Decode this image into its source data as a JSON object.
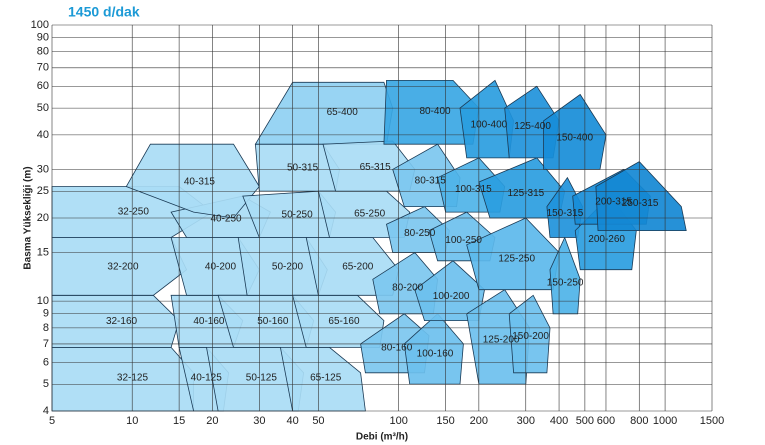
{
  "chart_data": {
    "type": "region",
    "title": "1450 d/dak",
    "x_label": "Debi (m³/h)",
    "y_label": "Basma Yüksekliği (m)",
    "xscale": "log",
    "yscale": "log",
    "grid": true,
    "xlim": [
      5,
      1500
    ],
    "ylim": [
      4,
      100
    ],
    "xticks": [
      5,
      10,
      15,
      20,
      30,
      40,
      50,
      100,
      150,
      200,
      300,
      400,
      500,
      600,
      800,
      1000,
      1500
    ],
    "yticks": [
      4,
      5,
      6,
      7,
      8,
      9,
      10,
      15,
      20,
      25,
      30,
      40,
      50,
      60,
      70,
      80,
      90,
      100
    ],
    "regions": [
      {
        "name": "32-125",
        "color": "#a9dcf5",
        "x": [
          5,
          17,
          17,
          14,
          5
        ],
        "y": [
          4,
          4,
          5.5,
          6.8,
          6.8
        ]
      },
      {
        "name": "32-160",
        "color": "#a9dcf5",
        "x": [
          5,
          14,
          15,
          12,
          5
        ],
        "y": [
          6.8,
          6.8,
          8.5,
          10.5,
          10.5
        ]
      },
      {
        "name": "32-200",
        "color": "#a9dcf5",
        "x": [
          5,
          12,
          16,
          14,
          5
        ],
        "y": [
          10.5,
          10.5,
          13,
          17,
          17
        ]
      },
      {
        "name": "32-250",
        "color": "#a9dcf5",
        "x": [
          5,
          14,
          20,
          15,
          5
        ],
        "y": [
          17,
          17,
          21,
          26,
          26
        ]
      },
      {
        "name": "40-125",
        "color": "#a9dcf5",
        "x": [
          17,
          22,
          23,
          19,
          15
        ],
        "y": [
          4,
          4,
          5.5,
          6.8,
          6.8
        ]
      },
      {
        "name": "40-160",
        "color": "#a9dcf5",
        "x": [
          15,
          24,
          26,
          21,
          14
        ],
        "y": [
          6.8,
          6.8,
          8.5,
          10.5,
          10.5
        ]
      },
      {
        "name": "40-200",
        "color": "#a9dcf5",
        "x": [
          16,
          27,
          30,
          25,
          14
        ],
        "y": [
          10.5,
          10.5,
          13,
          17,
          17
        ]
      },
      {
        "name": "40-250",
        "color": "#a9dcf5",
        "x": [
          16,
          30,
          33,
          26,
          14
        ],
        "y": [
          17,
          17,
          21,
          24,
          21
        ]
      },
      {
        "name": "40-315",
        "color": "#a9dcf5",
        "x": [
          17,
          24,
          30,
          24,
          11.7,
          9.5
        ],
        "y": [
          21,
          20,
          26,
          37,
          37,
          26
        ]
      },
      {
        "name": "50-125",
        "color": "#a9dcf5",
        "x": [
          21,
          42,
          44,
          36,
          19
        ],
        "y": [
          4,
          4,
          5.5,
          6.8,
          6.8
        ]
      },
      {
        "name": "50-160",
        "color": "#a9dcf5",
        "x": [
          24,
          45,
          48,
          40,
          21
        ],
        "y": [
          6.8,
          6.8,
          8.5,
          10.5,
          10.5
        ]
      },
      {
        "name": "50-200",
        "color": "#a9dcf5",
        "x": [
          27,
          50,
          54,
          45,
          25
        ],
        "y": [
          10.5,
          10.5,
          13,
          17,
          17
        ]
      },
      {
        "name": "50-250",
        "color": "#a9dcf5",
        "x": [
          30,
          55,
          58,
          50,
          26
        ],
        "y": [
          17,
          17,
          21,
          25,
          24
        ]
      },
      {
        "name": "50-315",
        "color": "#a9dcf5",
        "x": [
          30,
          58,
          60,
          52,
          29
        ],
        "y": [
          25,
          25,
          30,
          37,
          37
        ]
      },
      {
        "name": "65-400",
        "color": "#8fd0f2",
        "x": [
          29,
          90,
          95,
          88,
          40
        ],
        "y": [
          37,
          37,
          50,
          62,
          62
        ]
      },
      {
        "name": "65-125",
        "color": "#a9dcf5",
        "x": [
          40,
          75,
          72,
          55,
          36
        ],
        "y": [
          4,
          4,
          5.5,
          6.8,
          6.8
        ]
      },
      {
        "name": "65-160",
        "color": "#a9dcf5",
        "x": [
          45,
          85,
          88,
          70,
          40
        ],
        "y": [
          6.8,
          6.8,
          8.5,
          10.5,
          10.5
        ]
      },
      {
        "name": "65-200",
        "color": "#a9dcf5",
        "x": [
          50,
          95,
          100,
          80,
          45
        ],
        "y": [
          10.5,
          10.5,
          13,
          17,
          17
        ]
      },
      {
        "name": "65-250",
        "color": "#a9dcf5",
        "x": [
          55,
          105,
          110,
          90,
          50
        ],
        "y": [
          17,
          17,
          21,
          25,
          25
        ]
      },
      {
        "name": "65-315",
        "color": "#a9dcf5",
        "x": [
          58,
          110,
          115,
          95,
          52
        ],
        "y": [
          25,
          25,
          30,
          38,
          37
        ]
      },
      {
        "name": "80-160",
        "color": "#7cc7ef",
        "x": [
          75,
          125,
          130,
          105,
          72
        ],
        "y": [
          5.5,
          5.5,
          7.5,
          9,
          7
        ]
      },
      {
        "name": "80-200",
        "color": "#7cc7ef",
        "x": [
          85,
          135,
          140,
          115,
          80
        ],
        "y": [
          9,
          9,
          12,
          15,
          12
        ]
      },
      {
        "name": "80-250",
        "color": "#7cc7ef",
        "x": [
          95,
          150,
          155,
          125,
          90
        ],
        "y": [
          15,
          15,
          18,
          22,
          19
        ]
      },
      {
        "name": "80-315",
        "color": "#7cc7ef",
        "x": [
          105,
          165,
          170,
          140,
          95
        ],
        "y": [
          22,
          22,
          28,
          37,
          30
        ]
      },
      {
        "name": "80-400",
        "color": "#3aa7e4",
        "x": [
          88,
          190,
          200,
          160,
          90
        ],
        "y": [
          37,
          37,
          50,
          63,
          63
        ]
      },
      {
        "name": "100-160",
        "color": "#6cc0ee",
        "x": [
          110,
          170,
          175,
          140,
          105
        ],
        "y": [
          5,
          5,
          7,
          9,
          7
        ]
      },
      {
        "name": "100-200",
        "color": "#6cc0ee",
        "x": [
          125,
          200,
          210,
          160,
          115
        ],
        "y": [
          8.5,
          8.5,
          11,
          14,
          11
        ]
      },
      {
        "name": "100-250",
        "color": "#6cc0ee",
        "x": [
          140,
          220,
          230,
          180,
          130
        ],
        "y": [
          14,
          14,
          17,
          21,
          18
        ]
      },
      {
        "name": "100-315",
        "color": "#4eb3e8",
        "x": [
          150,
          240,
          250,
          200,
          140
        ],
        "y": [
          21,
          21,
          26,
          33,
          28
        ]
      },
      {
        "name": "100-400",
        "color": "#2a9de0",
        "x": [
          180,
          260,
          270,
          230,
          170
        ],
        "y": [
          33,
          33,
          45,
          63,
          50
        ]
      },
      {
        "name": "125-200",
        "color": "#6cc0ee",
        "x": [
          200,
          300,
          310,
          250,
          180
        ],
        "y": [
          5,
          5,
          8,
          11,
          9
        ]
      },
      {
        "name": "125-250",
        "color": "#5cb9eb",
        "x": [
          200,
          380,
          400,
          300,
          180
        ],
        "y": [
          11,
          11,
          15,
          20,
          16
        ]
      },
      {
        "name": "125-315",
        "color": "#2a9de0",
        "x": [
          220,
          400,
          420,
          330,
          200
        ],
        "y": [
          20,
          20,
          25,
          33,
          27
        ]
      },
      {
        "name": "125-400",
        "color": "#1f93db",
        "x": [
          260,
          380,
          400,
          330,
          250
        ],
        "y": [
          33,
          33,
          45,
          60,
          50
        ]
      },
      {
        "name": "150-200",
        "color": "#6cc0ee",
        "x": [
          270,
          360,
          370,
          320,
          260
        ],
        "y": [
          5.5,
          5.5,
          8,
          10.5,
          9
        ]
      },
      {
        "name": "150-250",
        "color": "#4eb3e8",
        "x": [
          380,
          470,
          480,
          420,
          370
        ],
        "y": [
          9,
          9,
          12,
          17,
          13
        ]
      },
      {
        "name": "150-315",
        "color": "#1f93db",
        "x": [
          370,
          470,
          490,
          430,
          360
        ],
        "y": [
          17,
          17,
          22,
          28,
          22
        ]
      },
      {
        "name": "150-400",
        "color": "#178dd8",
        "x": [
          350,
          570,
          600,
          480,
          350
        ],
        "y": [
          30,
          30,
          40,
          56,
          45
        ]
      },
      {
        "name": "200-260",
        "color": "#2a9de0",
        "x": [
          480,
          750,
          780,
          620,
          460
        ],
        "y": [
          13,
          13,
          18,
          24,
          18
        ]
      },
      {
        "name": "200-315",
        "color": "#178dd8",
        "x": [
          460,
          850,
          880,
          700,
          450
        ],
        "y": [
          19,
          19,
          24,
          30,
          24
        ]
      },
      {
        "name": "250-315",
        "color": "#1488d4",
        "x": [
          560,
          1200,
          1150,
          800,
          550
        ],
        "y": [
          18,
          18,
          22,
          32,
          26
        ]
      }
    ]
  }
}
